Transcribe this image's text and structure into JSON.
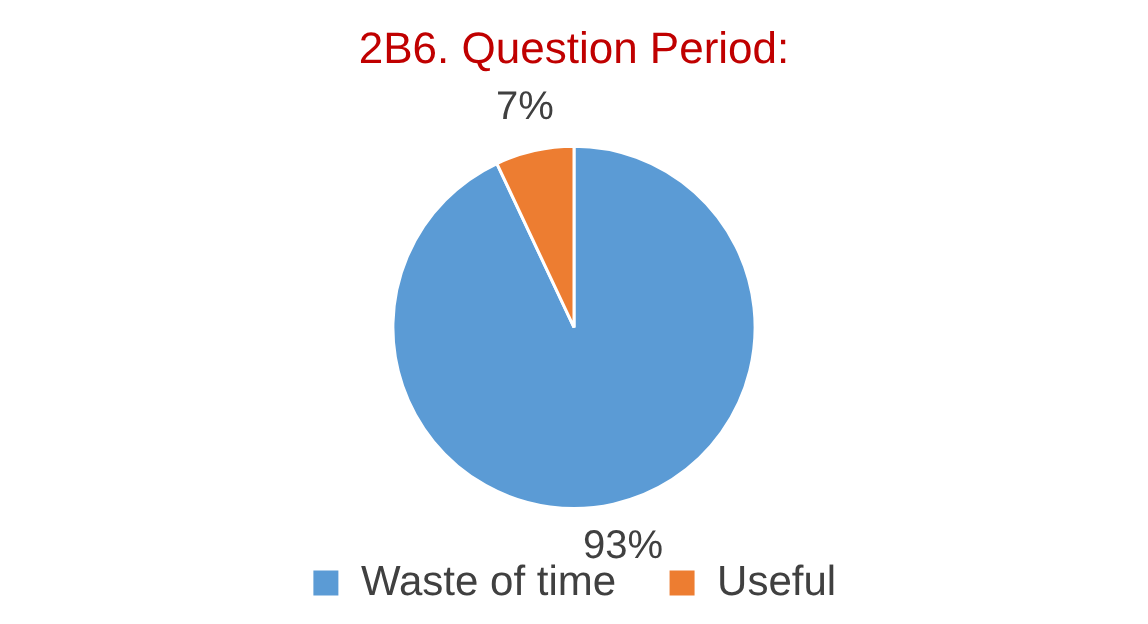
{
  "chart_data": {
    "type": "pie",
    "title": "2B6. Question Period:",
    "categories": [
      "Waste of time",
      "Useful"
    ],
    "values": [
      93,
      7
    ],
    "colors": [
      "#5b9bd5",
      "#ed7d31"
    ],
    "value_labels": [
      "93%",
      "7%"
    ],
    "legend": "bottom"
  }
}
